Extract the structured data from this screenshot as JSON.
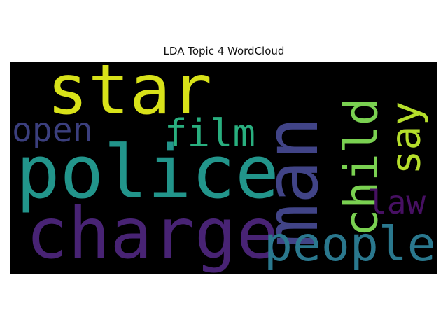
{
  "title": "LDA Topic 4 WordCloud",
  "background": "#000000",
  "words": [
    {
      "text": "police",
      "color": "#22958b",
      "rotate": false
    },
    {
      "text": "charge",
      "color": "#482374",
      "rotate": false
    },
    {
      "text": "star",
      "color": "#d8e219",
      "rotate": false
    },
    {
      "text": "man",
      "color": "#414487",
      "rotate": true
    },
    {
      "text": "people",
      "color": "#2a788e",
      "rotate": false
    },
    {
      "text": "child",
      "color": "#7ad151",
      "rotate": true
    },
    {
      "text": "say",
      "color": "#b5de2b",
      "rotate": true
    },
    {
      "text": "film",
      "color": "#29af7f",
      "rotate": false
    },
    {
      "text": "open",
      "color": "#3b3f7e",
      "rotate": false
    },
    {
      "text": "law",
      "color": "#471063",
      "rotate": false
    }
  ]
}
